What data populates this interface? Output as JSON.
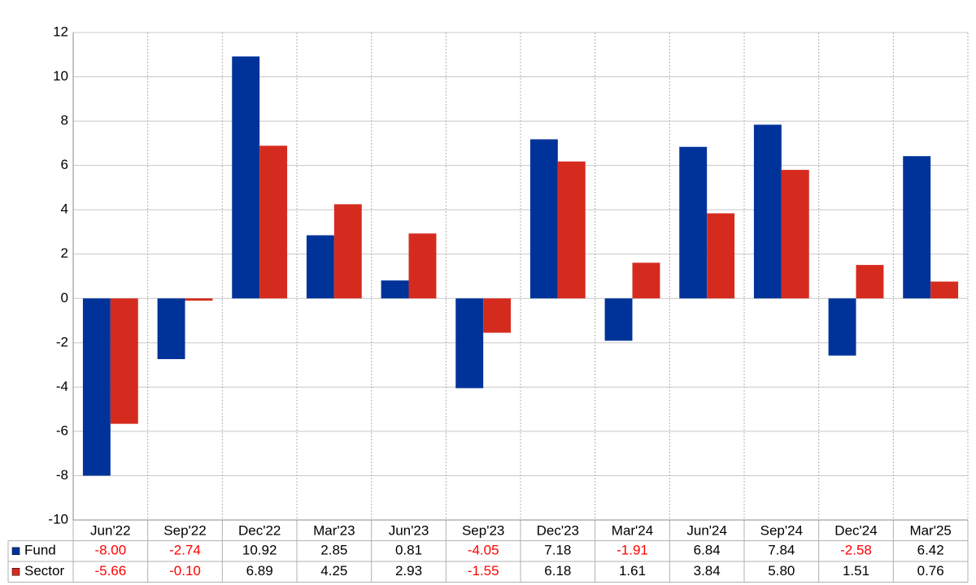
{
  "chart_data": {
    "type": "bar",
    "categories": [
      "Jun'22",
      "Sep'22",
      "Dec'22",
      "Mar'23",
      "Jun'23",
      "Sep'23",
      "Dec'23",
      "Mar'24",
      "Jun'24",
      "Sep'24",
      "Dec'24",
      "Mar'25"
    ],
    "series": [
      {
        "name": "Fund",
        "color": "#003399",
        "values": [
          -8.0,
          -2.74,
          10.92,
          2.85,
          0.81,
          -4.05,
          7.18,
          -1.91,
          6.84,
          7.84,
          -2.58,
          6.42
        ],
        "value_labels": [
          "-8.00",
          "-2.74",
          "10.92",
          "2.85",
          "0.81",
          "-4.05",
          "7.18",
          "-1.91",
          "6.84",
          "7.84",
          "-2.58",
          "6.42"
        ]
      },
      {
        "name": "Sector",
        "color": "#d52b1e",
        "values": [
          -5.66,
          -0.1,
          6.89,
          4.25,
          2.93,
          -1.55,
          6.18,
          1.61,
          3.84,
          5.8,
          1.51,
          0.76
        ],
        "value_labels": [
          "-5.66",
          "-0.10",
          "6.89",
          "4.25",
          "2.93",
          "-1.55",
          "6.18",
          "1.61",
          "3.84",
          "5.80",
          "1.51",
          "0.76"
        ]
      }
    ],
    "ylim": [
      -10,
      12
    ],
    "yticks": [
      -10,
      -8,
      -6,
      -4,
      -2,
      0,
      2,
      4,
      6,
      8,
      10,
      12
    ],
    "grid": true,
    "negative_label_color": "#ff0000"
  }
}
